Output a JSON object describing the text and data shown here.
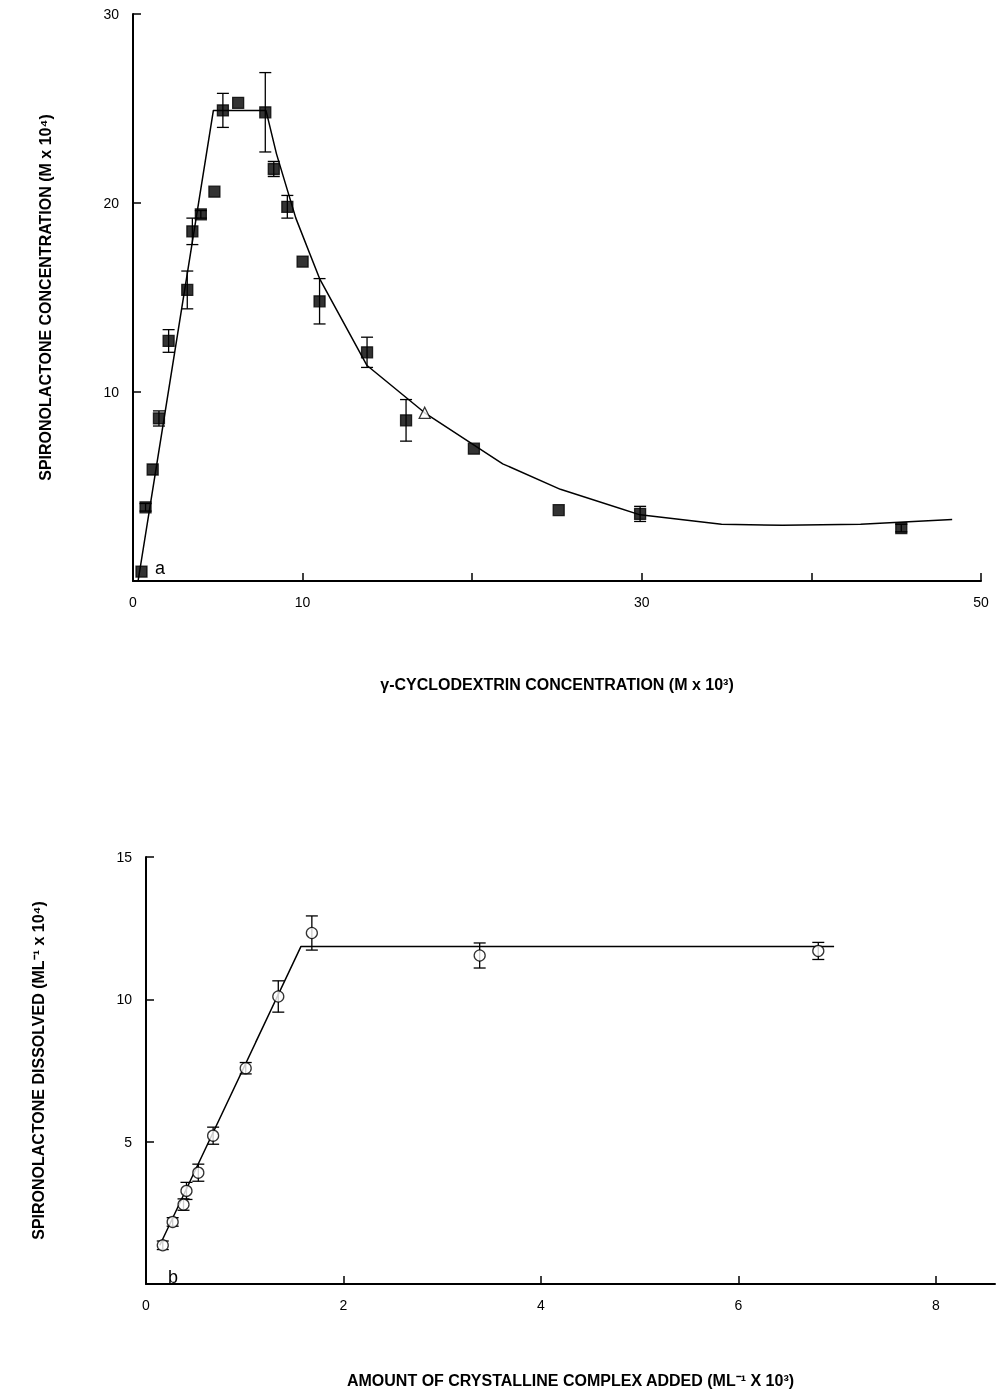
{
  "chart_data": [
    {
      "type": "scatter",
      "xlabel": "γ-CYCLODEXTRIN CONCENTRATION (M x 10³)",
      "ylabel": "SPIRONOLACTONE CONCENTRATION (M x 10⁴)",
      "annotations": [
        "a"
      ],
      "xlim": [
        0,
        50
      ],
      "xticks": [
        0,
        10,
        {
          "value": 20,
          "label": null
        },
        30,
        {
          "value": 40,
          "label": null
        },
        50
      ],
      "ylim": [
        0,
        30
      ],
      "yticks": [
        10,
        20,
        30
      ],
      "series": [
        {
          "type": "scatter",
          "color": "#000000",
          "marker": "square",
          "x": [
            0.5,
            0.74,
            1.16,
            1.53,
            2.1,
            3.2,
            3.5,
            4.0,
            4.8,
            5.3,
            6.2,
            7.8,
            8.3,
            9.1,
            10.0,
            11.0,
            13.8,
            16.1,
            20.1,
            25.1,
            29.9,
            45.3
          ],
          "values": [
            0.5,
            3.9,
            5.9,
            8.6,
            12.7,
            15.4,
            18.5,
            19.4,
            20.6,
            24.9,
            25.3,
            24.8,
            21.8,
            19.8,
            16.9,
            14.8,
            12.1,
            8.5,
            7.0,
            3.75,
            3.55,
            2.8
          ],
          "errors": [
            null,
            0.2,
            null,
            0.4,
            0.6,
            1.0,
            0.7,
            0.2,
            null,
            0.9,
            null,
            2.1,
            0.4,
            0.6,
            null,
            1.2,
            0.8,
            1.1,
            null,
            null,
            0.4,
            0.2
          ]
        },
        {
          "type": "scatter",
          "color": "#000000",
          "marker": "triangle",
          "x": [
            17.2
          ],
          "values": [
            8.9
          ]
        },
        {
          "type": "line",
          "color": "#000000",
          "x": [
            0.3,
            4.74,
            7.84,
            8.46,
            9.6,
            11.0,
            13.8,
            17.2,
            21.8,
            25.2,
            29.9,
            34.7,
            38.3,
            42.9,
            48.3
          ],
          "values": [
            0,
            24.9,
            24.9,
            22.6,
            19.2,
            16.0,
            11.4,
            8.9,
            6.2,
            4.85,
            3.5,
            3.0,
            2.95,
            3.0,
            3.25
          ]
        }
      ]
    },
    {
      "type": "scatter",
      "xlabel": "AMOUNT OF CRYSTALLINE COMPLEX ADDED (ML⁻¹ X 10³)",
      "ylabel": "SPIRONOLACTONE DISSOLVED (ML⁻¹ x 10⁴)",
      "annotations": [
        "b"
      ],
      "xlim": [
        0,
        8.6
      ],
      "xticks": [
        0,
        2,
        4,
        6,
        8
      ],
      "ylim": [
        0,
        15
      ],
      "yticks": [
        5,
        10,
        15
      ],
      "series": [
        {
          "type": "scatter",
          "color": "#000000",
          "marker": "circle",
          "x": [
            0.17,
            0.27,
            0.38,
            0.41,
            0.53,
            0.68,
            1.01,
            1.34,
            1.68,
            3.38,
            6.81
          ],
          "values": [
            1.36,
            2.18,
            2.79,
            3.27,
            3.91,
            5.21,
            7.58,
            10.1,
            12.33,
            11.54,
            11.7
          ],
          "errors": [
            0.15,
            0.15,
            0.2,
            0.3,
            0.3,
            0.3,
            0.2,
            0.55,
            0.6,
            0.44,
            0.3
          ]
        },
        {
          "type": "line",
          "color": "#000000",
          "x": [
            0.14,
            1.57,
            6.97
          ],
          "values": [
            1.36,
            11.86,
            11.86
          ]
        }
      ]
    }
  ]
}
